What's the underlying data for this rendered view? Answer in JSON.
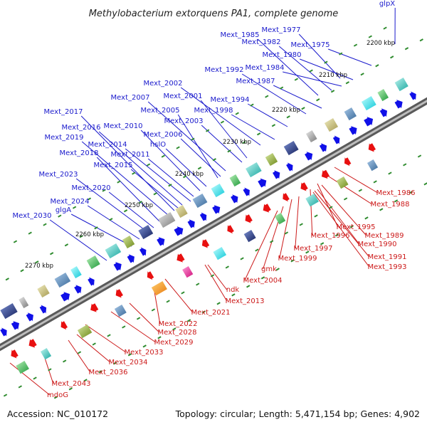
{
  "title": "Methylobacterium extorquens PA1, complete genome",
  "footer": {
    "accession": "Accession: NC_010172",
    "summary": "Topology: circular; Length: 5,471,154 bp; Genes: 4,902"
  },
  "scale_labels": [
    "2200 kbp",
    "2210 kbp",
    "2220 kbp",
    "2230 kbp",
    "2240 kbp",
    "2250 kbp",
    "2260 kbp",
    "2270 kbp"
  ],
  "top_strand_labels": [
    "glpX",
    "Mext_1977",
    "Mext_1985",
    "Mext_1982",
    "Mext_1975",
    "Mext_1980",
    "Mext_1992",
    "Mext_1984",
    "Mext_2002",
    "Mext_1987",
    "Mext_2007",
    "Mext_2001",
    "Mext_1994",
    "Mext_2017",
    "Mext_2005",
    "Mext_1998",
    "Mext_2003",
    "Mext_2016",
    "Mext_2010",
    "Mext_2019",
    "Mext_2006",
    "Mext_2014",
    "hslO",
    "Mext_2018",
    "Mext_2011",
    "Mext_2015",
    "Mext_2023",
    "Mext_2020",
    "Mext_2024",
    "glgA",
    "Mext_2030"
  ],
  "bottom_strand_labels": [
    "Mext_1986",
    "Mext_1988",
    "Mext_1995",
    "Mext_1989",
    "Mext_1996",
    "Mext_1990",
    "Mext_1997",
    "Mext_1991",
    "Mext_1999",
    "Mext_1993",
    "gmk",
    "Mext_2004",
    "ndk",
    "Mext_2013",
    "Mext_2021",
    "Mext_2022",
    "Mext_2028",
    "Mext_2029",
    "Mext_2033",
    "Mext_2034",
    "Mext_2036",
    "Mext_2043",
    "mdoG"
  ],
  "colors": {
    "backbone": "#8a8a8a",
    "top_arrow": "#1010e8",
    "bottom_arrow": "#e81010",
    "tick": "#2e8b2e",
    "top_label": "#1a1acc",
    "bottom_label": "#cc1a1a"
  }
}
